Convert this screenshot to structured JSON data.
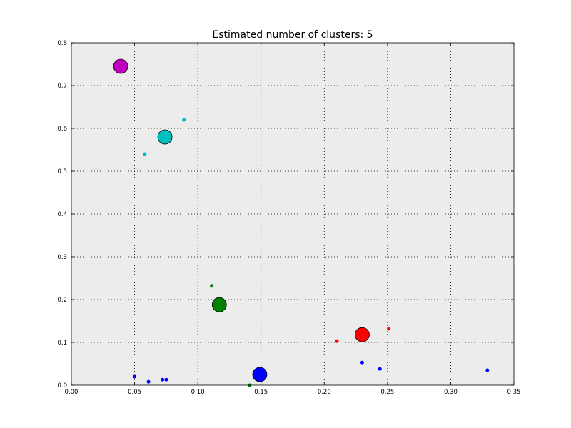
{
  "chart_data": {
    "type": "scatter",
    "title": "Estimated number of clusters: 5",
    "xlabel": "",
    "ylabel": "",
    "xlim": [
      0.0,
      0.35
    ],
    "ylim": [
      0.0,
      0.8
    ],
    "x_ticks": [
      "0.00",
      "0.05",
      "0.10",
      "0.15",
      "0.20",
      "0.25",
      "0.30",
      "0.35"
    ],
    "y_ticks": [
      "0.0",
      "0.1",
      "0.2",
      "0.3",
      "0.4",
      "0.5",
      "0.6",
      "0.7",
      "0.8"
    ],
    "grid": true,
    "background_color": "#ececec",
    "clusters": [
      {
        "color": "#0000ff",
        "center": [
          0.149,
          0.025
        ],
        "points": [
          [
            0.05,
            0.02
          ],
          [
            0.061,
            0.008
          ],
          [
            0.072,
            0.013
          ],
          [
            0.075,
            0.013
          ],
          [
            0.23,
            0.053
          ],
          [
            0.244,
            0.038
          ],
          [
            0.329,
            0.035
          ]
        ]
      },
      {
        "color": "#008000",
        "center": [
          0.117,
          0.188
        ],
        "points": [
          [
            0.111,
            0.232
          ],
          [
            0.119,
            0.175
          ],
          [
            0.141,
            0.0
          ]
        ]
      },
      {
        "color": "#ff0000",
        "center": [
          0.23,
          0.118
        ],
        "points": [
          [
            0.21,
            0.103
          ],
          [
            0.251,
            0.132
          ]
        ]
      },
      {
        "color": "#00bfbf",
        "center": [
          0.074,
          0.58
        ],
        "points": [
          [
            0.058,
            0.54
          ],
          [
            0.089,
            0.62
          ]
        ]
      },
      {
        "color": "#bf00bf",
        "center": [
          0.039,
          0.745
        ],
        "points": []
      }
    ]
  }
}
